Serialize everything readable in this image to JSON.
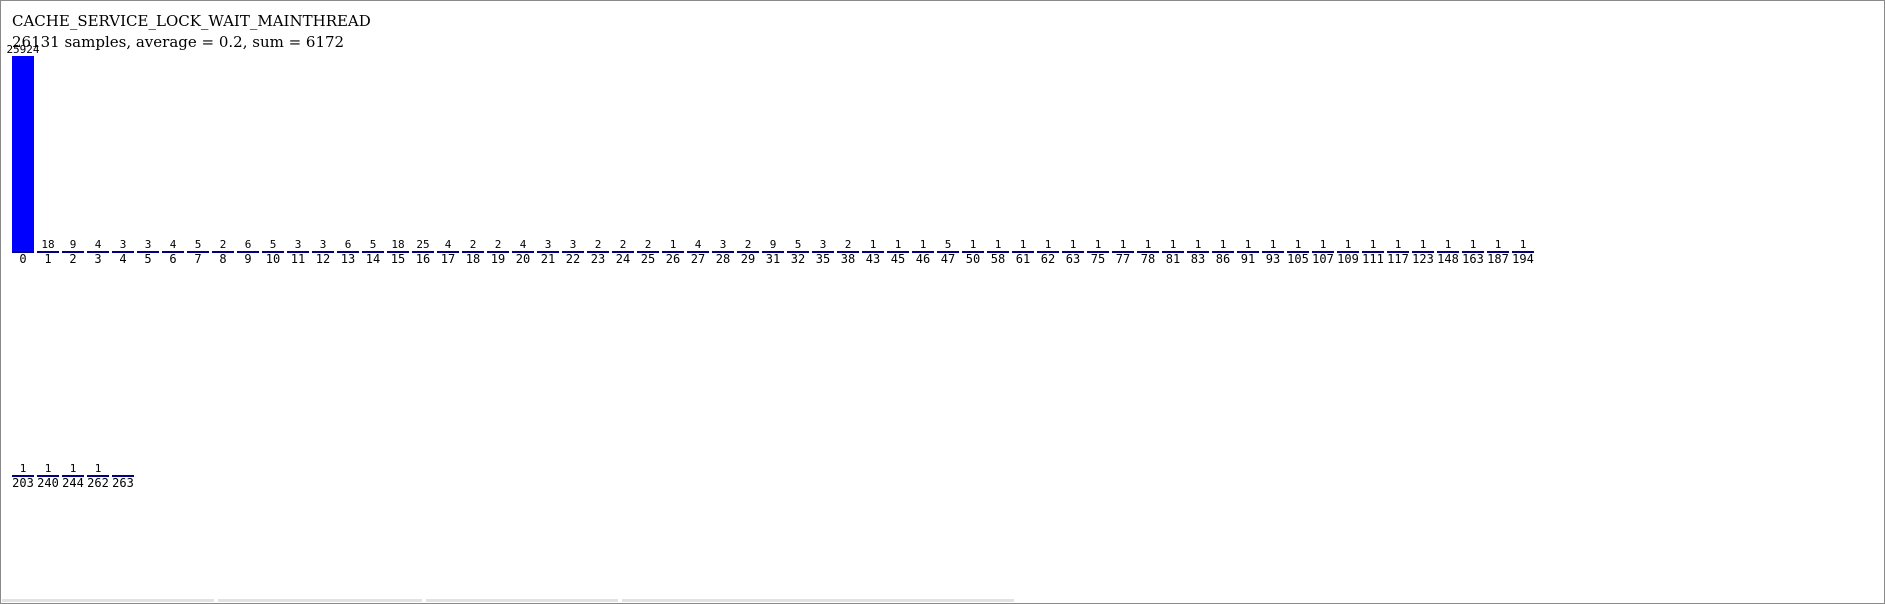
{
  "chart_data": {
    "type": "bar",
    "title": "CACHE_SERVICE_LOCK_WAIT_MAINTHREAD",
    "subtitle": "26131 samples, average = 0.2, sum = 6172",
    "bar_color": "#0000ff",
    "baseline_color": "#000080",
    "categories": [
      "0",
      "1",
      "2",
      "3",
      "4",
      "5",
      "6",
      "7",
      "8",
      "9",
      "10",
      "11",
      "12",
      "13",
      "14",
      "15",
      "16",
      "17",
      "18",
      "19",
      "20",
      "21",
      "22",
      "23",
      "24",
      "25",
      "26",
      "27",
      "28",
      "29",
      "31",
      "32",
      "35",
      "38",
      "43",
      "45",
      "46",
      "47",
      "50",
      "58",
      "61",
      "62",
      "63",
      "75",
      "77",
      "78",
      "81",
      "83",
      "86",
      "91",
      "93",
      "105",
      "107",
      "109",
      "111",
      "117",
      "123",
      "148",
      "163",
      "187",
      "194",
      "203",
      "240",
      "244",
      "262",
      "263"
    ],
    "values": [
      25924,
      18,
      9,
      4,
      3,
      3,
      4,
      5,
      2,
      6,
      5,
      3,
      3,
      6,
      5,
      18,
      25,
      4,
      2,
      2,
      4,
      3,
      3,
      2,
      2,
      2,
      1,
      4,
      3,
      2,
      9,
      5,
      3,
      2,
      1,
      1,
      1,
      5,
      1,
      1,
      1,
      1,
      1,
      1,
      1,
      1,
      1,
      1,
      1,
      1,
      1,
      1,
      1,
      1,
      1,
      1,
      1,
      1,
      1,
      1,
      1,
      1,
      1,
      1,
      1,
      0
    ]
  }
}
